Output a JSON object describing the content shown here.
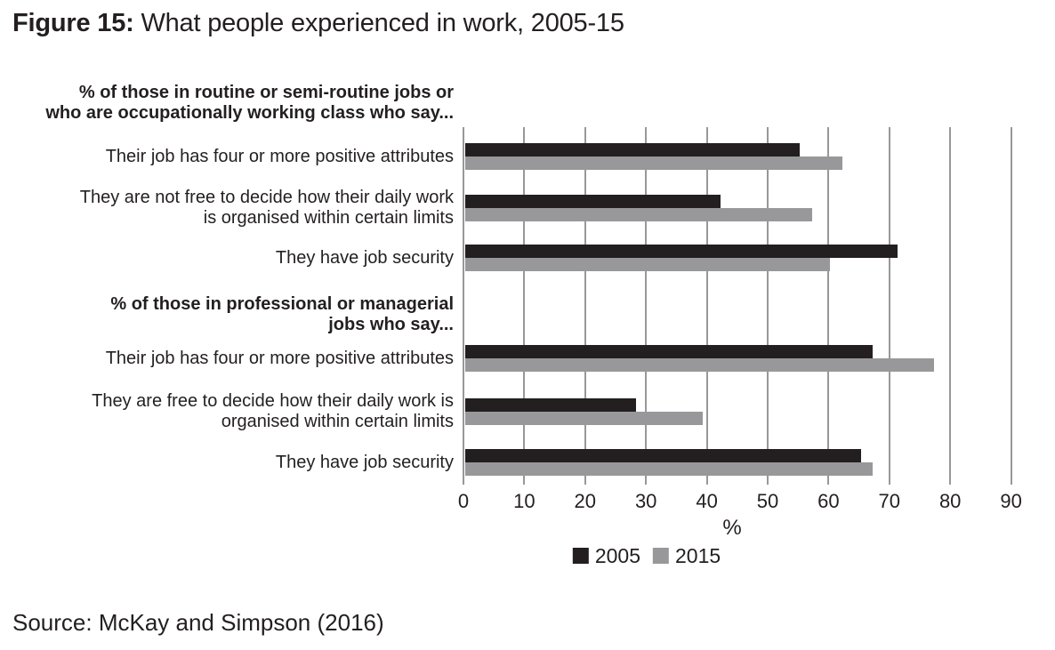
{
  "title": {
    "prefix": "Figure 15:",
    "text": "What people experienced in work, 2005-15"
  },
  "source": "Source: McKay and Simpson (2016)",
  "colors": {
    "series_2005": "#231f20",
    "series_2015": "#98989a",
    "gridline": "#98989a",
    "text": "#231f20"
  },
  "legend": [
    {
      "label": "2005",
      "color": "#231f20"
    },
    {
      "label": "2015",
      "color": "#98989a"
    }
  ],
  "chart_data": {
    "type": "bar",
    "orientation": "horizontal",
    "title": "Figure 15: What people experienced in work, 2005-15",
    "xlabel": "%",
    "ylabel": "",
    "xlim": [
      0,
      90
    ],
    "xticks": [
      0,
      10,
      20,
      30,
      40,
      50,
      60,
      70,
      80,
      90
    ],
    "grid": true,
    "legend_position": "bottom",
    "series_names": [
      "2005",
      "2015"
    ],
    "groups": [
      {
        "header_lines": [
          "% of those in routine or semi-routine jobs or",
          "who are occupationally working class who say..."
        ],
        "rows": [
          {
            "label_lines": [
              "Their job has four or more positive attributes"
            ],
            "values": [
              55,
              62
            ]
          },
          {
            "label_lines": [
              "They are not free to decide how their daily work",
              "is organised within certain limits"
            ],
            "values": [
              42,
              57
            ]
          },
          {
            "label_lines": [
              "They have job security"
            ],
            "values": [
              71,
              60
            ]
          }
        ]
      },
      {
        "header_lines": [
          "% of those in professional or managerial",
          "jobs who say..."
        ],
        "rows": [
          {
            "label_lines": [
              "Their job has four or more positive attributes"
            ],
            "values": [
              67,
              77
            ]
          },
          {
            "label_lines": [
              "They are free to decide how their daily work is",
              "organised within certain limits"
            ],
            "values": [
              28,
              39
            ]
          },
          {
            "label_lines": [
              "They have job security"
            ],
            "values": [
              65,
              67
            ]
          }
        ]
      }
    ]
  }
}
